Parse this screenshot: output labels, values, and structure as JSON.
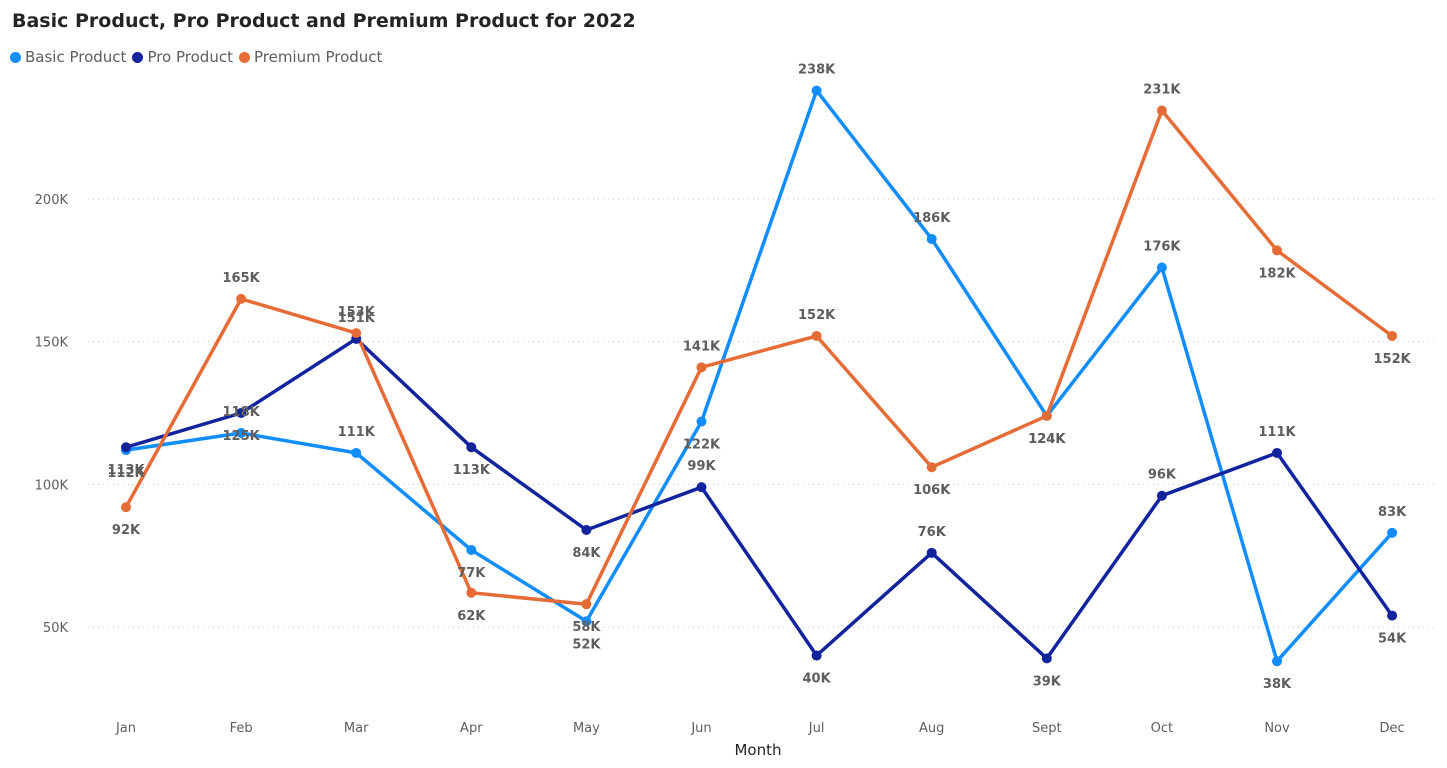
{
  "chart_data": {
    "type": "line",
    "title": "Basic Product, Pro Product and Premium Product for 2022",
    "xlabel": "Month",
    "ylabel": "",
    "categories": [
      "Jan",
      "Feb",
      "Mar",
      "Apr",
      "May",
      "Jun",
      "Jul",
      "Aug",
      "Sept",
      "Oct",
      "Nov",
      "Dec"
    ],
    "ylim": [
      20000,
      245000
    ],
    "yticks": [
      50000,
      100000,
      150000,
      200000
    ],
    "ytick_labels": [
      "50K",
      "100K",
      "150K",
      "200K"
    ],
    "grid": true,
    "legend_position": "top-left",
    "series": [
      {
        "name": "Basic Product",
        "color": "#118dff",
        "values": [
          112000,
          118000,
          111000,
          77000,
          52000,
          122000,
          238000,
          186000,
          124000,
          176000,
          38000,
          83000
        ],
        "labels": [
          "112K",
          "118K",
          "111K",
          "77K",
          "52K",
          "122K",
          "238K",
          "186K",
          "124K",
          "176K",
          "38K",
          "83K"
        ]
      },
      {
        "name": "Pro Product",
        "color": "#12239e",
        "values": [
          113000,
          125000,
          151000,
          113000,
          84000,
          99000,
          40000,
          76000,
          39000,
          96000,
          111000,
          54000
        ],
        "labels": [
          "113K",
          "125K",
          "151K",
          "113K",
          "84K",
          "99K",
          "40K",
          "76K",
          "39K",
          "96K",
          "111K",
          "54K"
        ]
      },
      {
        "name": "Premium Product",
        "color": "#e66c37",
        "values": [
          92000,
          165000,
          153000,
          62000,
          58000,
          141000,
          152000,
          106000,
          124000,
          231000,
          182000,
          152000
        ],
        "labels": [
          "92K",
          "165K",
          "153K",
          "62K",
          "58K",
          "141K",
          "152K",
          "106K",
          "124K",
          "231K",
          "182K",
          "152K"
        ]
      }
    ]
  }
}
